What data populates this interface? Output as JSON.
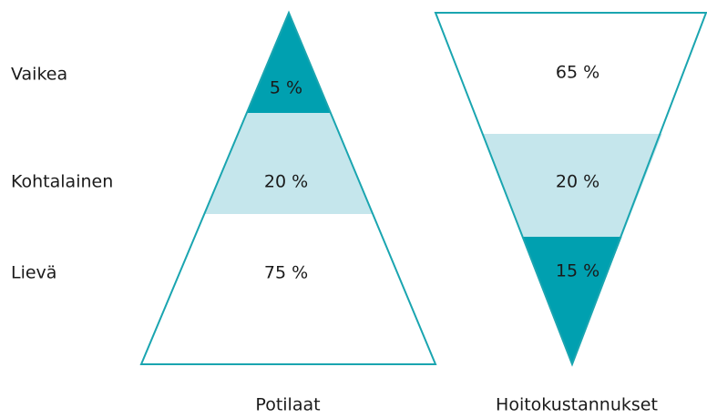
{
  "levels": [
    "Vaikea",
    "Kohtalainen",
    "Lievä"
  ],
  "pyramids": [
    {
      "label": "Potilaat",
      "segments": [
        "5 %",
        "20 %",
        "75 %"
      ]
    },
    {
      "label": "Hoitokustannukset",
      "segments": [
        "65 %",
        "20 %",
        "15 %"
      ]
    }
  ]
}
